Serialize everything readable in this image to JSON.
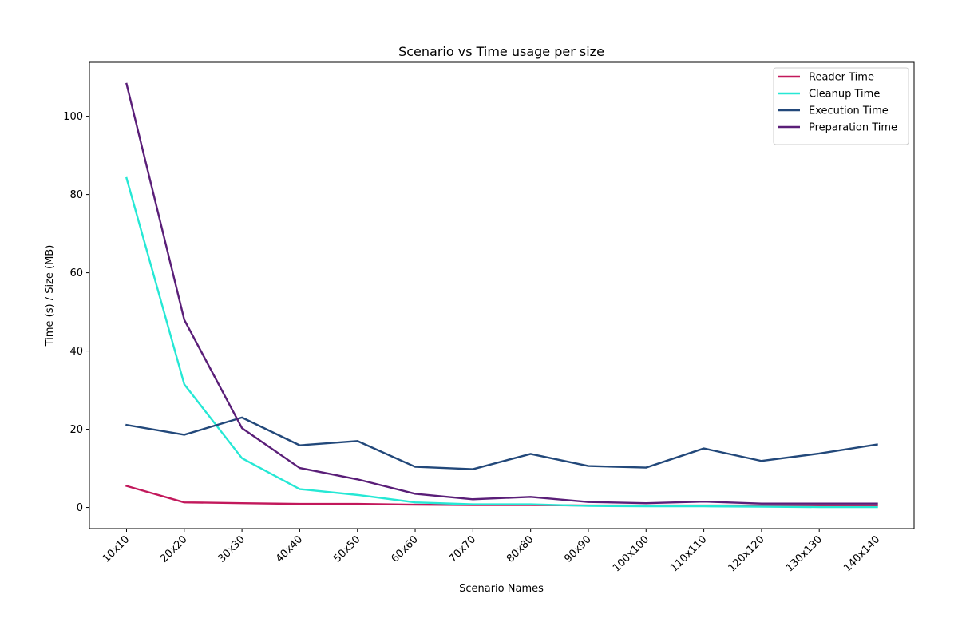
{
  "chart_data": {
    "type": "line",
    "title": "Scenario vs Time usage per size",
    "xlabel": "Scenario Names",
    "ylabel": "Time (s) / Size (MB)",
    "categories": [
      "10x10",
      "20x20",
      "30x30",
      "40x40",
      "50x50",
      "60x60",
      "70x70",
      "80x80",
      "90x90",
      "100x100",
      "110x110",
      "120x120",
      "130x130",
      "140x140"
    ],
    "ylim": [
      -5.4,
      113.8
    ],
    "yticks": [
      0,
      20,
      40,
      60,
      80,
      100
    ],
    "grid": false,
    "legend_position": "top-right",
    "series": [
      {
        "name": "Reader Time",
        "color": "#c2185b",
        "values": [
          5.5,
          1.3,
          1.1,
          0.9,
          0.9,
          0.7,
          0.6,
          0.6,
          0.5,
          0.5,
          0.5,
          0.5,
          0.5,
          0.5
        ]
      },
      {
        "name": "Cleanup Time",
        "color": "#26e8d5",
        "values": [
          84.2,
          31.5,
          12.6,
          4.7,
          3.2,
          1.3,
          0.8,
          0.8,
          0.4,
          0.3,
          0.3,
          0.2,
          0.1,
          0.1
        ]
      },
      {
        "name": "Execution Time",
        "color": "#22487a",
        "values": [
          21.1,
          18.6,
          23.0,
          15.9,
          17.0,
          10.4,
          9.8,
          13.7,
          10.6,
          10.2,
          15.1,
          11.9,
          13.8,
          16.1
        ]
      },
      {
        "name": "Preparation Time",
        "color": "#5a1e78",
        "values": [
          108.3,
          48.0,
          20.3,
          10.1,
          7.2,
          3.5,
          2.1,
          2.7,
          1.4,
          1.1,
          1.5,
          1.0,
          1.0,
          1.0
        ]
      }
    ]
  }
}
